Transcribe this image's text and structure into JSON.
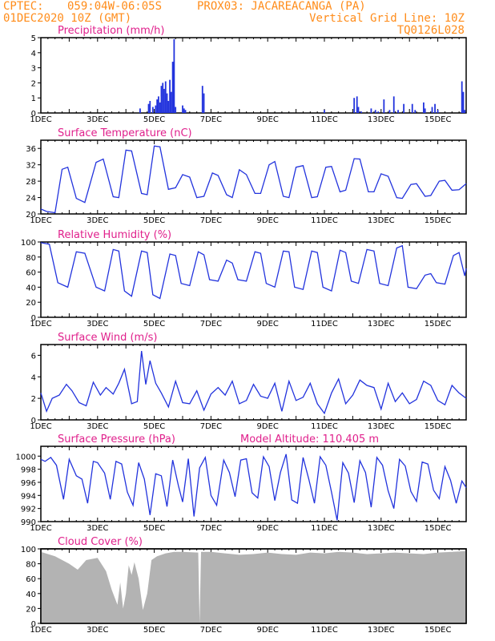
{
  "header": {
    "line1_left": "CPTEC:",
    "coords": "059:04W-06:05S",
    "station": "PROX03: JACAREACANGA (PA)",
    "init_time": "01DEC2020 10Z (GMT)",
    "grid_note": "Vertical Grid Line: 10Z",
    "run_code": "TQ0126L028"
  },
  "colors": {
    "header": "#ff8c1a",
    "title": "#e0208c",
    "series": "#2233dd",
    "cloud": "#b3b3b3",
    "frame": "#000000"
  },
  "x_axis": {
    "labels": [
      "1DEC",
      "3DEC",
      "5DEC",
      "7DEC",
      "9DEC",
      "11DEC",
      "13DEC",
      "15DEC"
    ],
    "day_range": [
      1,
      16
    ]
  },
  "chart_data": [
    {
      "id": "precip",
      "type": "bar",
      "title": "Precipitation (mm/h)",
      "ylim": [
        0,
        5
      ],
      "yticks": [
        0,
        1,
        2,
        3,
        4,
        5
      ],
      "x_days": [
        4.5,
        4.8,
        4.85,
        4.95,
        5.05,
        5.1,
        5.15,
        5.2,
        5.25,
        5.3,
        5.35,
        5.4,
        5.45,
        5.5,
        5.55,
        5.6,
        5.65,
        5.7,
        5.75,
        6.0,
        6.05,
        6.1,
        6.7,
        6.75,
        11.0,
        12.05,
        12.15,
        12.2,
        12.3,
        12.65,
        12.8,
        12.9,
        13.1,
        13.3,
        13.45,
        13.6,
        13.8,
        14.1,
        14.2,
        14.5,
        14.55,
        14.8,
        14.9,
        15.0,
        15.85,
        15.9,
        15.95
      ],
      "values": [
        0.3,
        0.6,
        0.8,
        0.4,
        0.5,
        0.9,
        1.1,
        0.7,
        1.8,
        2.0,
        1.6,
        2.1,
        1.3,
        0.8,
        2.2,
        1.4,
        3.4,
        4.9,
        0.4,
        0.5,
        0.3,
        0.2,
        1.8,
        1.3,
        0.2,
        1.0,
        1.1,
        0.4,
        0.1,
        0.3,
        0.2,
        0.1,
        0.9,
        0.2,
        1.1,
        0.2,
        0.6,
        0.6,
        0.2,
        0.7,
        0.3,
        0.4,
        0.6,
        0.2,
        2.1,
        1.4,
        0.2
      ]
    },
    {
      "id": "temp",
      "type": "line",
      "title": "Surface Temperature (nC)",
      "ylim": [
        20,
        38
      ],
      "yticks": [
        20,
        24,
        28,
        32,
        36
      ],
      "x_days": [
        1.0,
        1.2,
        1.5,
        1.75,
        1.95,
        2.25,
        2.55,
        2.95,
        3.2,
        3.55,
        3.75,
        4.0,
        4.2,
        4.55,
        4.75,
        5.0,
        5.2,
        5.5,
        5.75,
        6.0,
        6.25,
        6.5,
        6.75,
        7.05,
        7.25,
        7.55,
        7.75,
        8.0,
        8.25,
        8.55,
        8.75,
        9.05,
        9.25,
        9.55,
        9.75,
        10.0,
        10.25,
        10.55,
        10.75,
        11.05,
        11.25,
        11.55,
        11.75,
        12.05,
        12.25,
        12.55,
        12.75,
        13.0,
        13.25,
        13.55,
        13.75,
        14.05,
        14.25,
        14.55,
        14.75,
        15.05,
        15.25,
        15.5,
        15.75,
        16.0
      ],
      "values": [
        21.2,
        20.6,
        20.3,
        30.9,
        31.4,
        23.8,
        22.8,
        32.6,
        33.4,
        24.2,
        24.0,
        35.6,
        35.4,
        25.0,
        24.7,
        36.6,
        36.4,
        26.0,
        26.4,
        29.6,
        29.0,
        24.0,
        24.3,
        30.0,
        29.4,
        24.7,
        24.0,
        30.8,
        29.6,
        25.0,
        25.0,
        32.0,
        32.8,
        24.3,
        24.0,
        31.4,
        31.8,
        24.0,
        24.2,
        31.4,
        31.6,
        25.4,
        25.8,
        33.5,
        33.4,
        25.4,
        25.4,
        29.8,
        29.2,
        24.0,
        23.8,
        27.2,
        27.4,
        24.3,
        24.5,
        28.0,
        28.2,
        25.8,
        25.9,
        27.4
      ]
    },
    {
      "id": "rh",
      "type": "line",
      "title": "Relative Humidity (%)",
      "ylim": [
        0,
        100
      ],
      "yticks": [
        0,
        20,
        40,
        60,
        80,
        100
      ],
      "x_days": [
        1.0,
        1.3,
        1.6,
        1.95,
        2.25,
        2.55,
        2.95,
        3.25,
        3.55,
        3.75,
        3.95,
        4.2,
        4.55,
        4.75,
        4.95,
        5.2,
        5.55,
        5.75,
        5.95,
        6.25,
        6.55,
        6.75,
        6.95,
        7.25,
        7.55,
        7.75,
        7.95,
        8.25,
        8.55,
        8.75,
        8.95,
        9.25,
        9.55,
        9.75,
        9.95,
        10.25,
        10.55,
        10.75,
        10.95,
        11.25,
        11.55,
        11.75,
        11.95,
        12.2,
        12.5,
        12.75,
        12.95,
        13.25,
        13.55,
        13.75,
        13.95,
        14.25,
        14.55,
        14.75,
        14.95,
        15.25,
        15.55,
        15.75,
        15.95,
        16.0
      ],
      "values": [
        99,
        97,
        46,
        40,
        87,
        85,
        40,
        35,
        90,
        88,
        35,
        28,
        88,
        86,
        30,
        25,
        84,
        82,
        45,
        42,
        87,
        83,
        50,
        48,
        76,
        72,
        50,
        48,
        87,
        85,
        45,
        40,
        88,
        87,
        40,
        37,
        88,
        86,
        40,
        35,
        89,
        86,
        48,
        45,
        90,
        88,
        45,
        42,
        92,
        95,
        40,
        38,
        56,
        58,
        46,
        44,
        82,
        86,
        55,
        65
      ]
    },
    {
      "id": "wind",
      "type": "line",
      "title": "Surface Wind (m/s)",
      "ylim": [
        0,
        7
      ],
      "yticks": [
        0,
        2,
        4,
        6
      ],
      "x_days": [
        1.0,
        1.2,
        1.4,
        1.65,
        1.9,
        2.1,
        2.35,
        2.6,
        2.85,
        3.1,
        3.3,
        3.55,
        3.75,
        3.95,
        4.2,
        4.4,
        4.55,
        4.7,
        4.85,
        5.05,
        5.25,
        5.5,
        5.75,
        6.0,
        6.25,
        6.5,
        6.75,
        7.0,
        7.25,
        7.5,
        7.75,
        8.0,
        8.25,
        8.5,
        8.75,
        9.0,
        9.25,
        9.5,
        9.75,
        10.0,
        10.25,
        10.5,
        10.75,
        11.0,
        11.25,
        11.5,
        11.75,
        12.0,
        12.25,
        12.5,
        12.75,
        13.0,
        13.25,
        13.5,
        13.75,
        14.0,
        14.25,
        14.5,
        14.75,
        15.0,
        15.25,
        15.5,
        15.75,
        16.0
      ],
      "values": [
        2.5,
        0.8,
        2.0,
        2.3,
        3.3,
        2.7,
        1.6,
        1.3,
        3.5,
        2.3,
        3.0,
        2.4,
        3.4,
        4.7,
        1.5,
        1.7,
        6.4,
        3.3,
        5.5,
        3.4,
        2.5,
        1.2,
        3.6,
        1.6,
        1.5,
        2.7,
        0.9,
        2.4,
        3.0,
        2.3,
        3.6,
        1.5,
        1.8,
        3.3,
        2.2,
        2.0,
        3.4,
        0.8,
        3.6,
        1.8,
        2.1,
        3.4,
        1.5,
        0.6,
        2.5,
        3.8,
        1.5,
        2.3,
        3.7,
        3.2,
        3.0,
        1.0,
        3.4,
        1.7,
        2.5,
        1.5,
        1.9,
        3.6,
        3.2,
        1.8,
        1.4,
        3.2,
        2.5,
        2.0
      ]
    },
    {
      "id": "pressure",
      "type": "line",
      "title": "Surface Pressure (hPa)",
      "annotation": "Model Altitude: 110.405 m",
      "ylim": [
        990,
        1001.5
      ],
      "yticks": [
        990,
        992,
        994,
        996,
        998,
        1000
      ],
      "x_days": [
        1.0,
        1.15,
        1.35,
        1.55,
        1.8,
        2.0,
        2.25,
        2.45,
        2.65,
        2.85,
        3.0,
        3.25,
        3.45,
        3.65,
        3.85,
        4.05,
        4.25,
        4.45,
        4.65,
        4.85,
        5.05,
        5.25,
        5.45,
        5.65,
        5.85,
        6.0,
        6.2,
        6.4,
        6.6,
        6.8,
        7.0,
        7.2,
        7.45,
        7.65,
        7.85,
        8.05,
        8.25,
        8.45,
        8.65,
        8.85,
        9.05,
        9.25,
        9.45,
        9.65,
        9.85,
        10.05,
        10.25,
        10.45,
        10.65,
        10.85,
        11.05,
        11.25,
        11.45,
        11.65,
        11.85,
        12.05,
        12.25,
        12.45,
        12.65,
        12.85,
        13.05,
        13.25,
        13.45,
        13.65,
        13.85,
        14.05,
        14.25,
        14.45,
        14.65,
        14.85,
        15.05,
        15.25,
        15.45,
        15.65,
        15.85,
        16.0
      ],
      "values": [
        999.5,
        999.2,
        999.8,
        998.6,
        993.4,
        999.5,
        997.0,
        996.5,
        992.8,
        999.2,
        999.0,
        997.4,
        993.4,
        999.2,
        998.8,
        994.5,
        992.5,
        999.0,
        996.5,
        991.0,
        997.3,
        997.0,
        992.3,
        999.4,
        995.5,
        993.0,
        999.6,
        990.8,
        998.2,
        999.8,
        994.0,
        992.5,
        999.4,
        997.5,
        993.8,
        999.4,
        999.6,
        994.4,
        993.6,
        999.9,
        998.4,
        993.2,
        997.5,
        1000.3,
        993.3,
        992.8,
        999.8,
        996.5,
        992.8,
        999.9,
        998.6,
        994.5,
        990.2,
        999.0,
        997.4,
        992.9,
        999.3,
        997.5,
        992.2,
        999.8,
        998.6,
        994.7,
        992.0,
        999.5,
        998.5,
        994.6,
        993.1,
        999.1,
        998.8,
        994.8,
        993.5,
        998.4,
        996.3,
        992.8,
        996.2,
        995.2
      ]
    },
    {
      "id": "cloud",
      "type": "area",
      "title": "Cloud Cover (%)",
      "ylim": [
        0,
        100
      ],
      "yticks": [
        0,
        20,
        40,
        60,
        80,
        100
      ],
      "x_days": [
        1.0,
        1.5,
        2.0,
        2.3,
        2.6,
        3.0,
        3.3,
        3.5,
        3.7,
        3.8,
        3.9,
        4.0,
        4.1,
        4.2,
        4.3,
        4.45,
        4.6,
        4.75,
        4.9,
        5.1,
        5.4,
        5.7,
        6.0,
        6.55,
        6.6,
        6.65,
        6.7,
        7.0,
        7.5,
        8.0,
        8.5,
        9.0,
        9.5,
        10.0,
        10.5,
        11.0,
        11.5,
        12.0,
        12.5,
        13.0,
        13.5,
        14.0,
        14.5,
        15.0,
        15.5,
        16.0
      ],
      "values": [
        96,
        90,
        80,
        72,
        85,
        88,
        70,
        45,
        25,
        55,
        20,
        40,
        78,
        65,
        82,
        60,
        18,
        40,
        85,
        90,
        94,
        96,
        96,
        95,
        0,
        96,
        96,
        96,
        94,
        92,
        93,
        95,
        93,
        92,
        95,
        94,
        96,
        95,
        93,
        94,
        95,
        94,
        93,
        95,
        96,
        97
      ]
    }
  ]
}
